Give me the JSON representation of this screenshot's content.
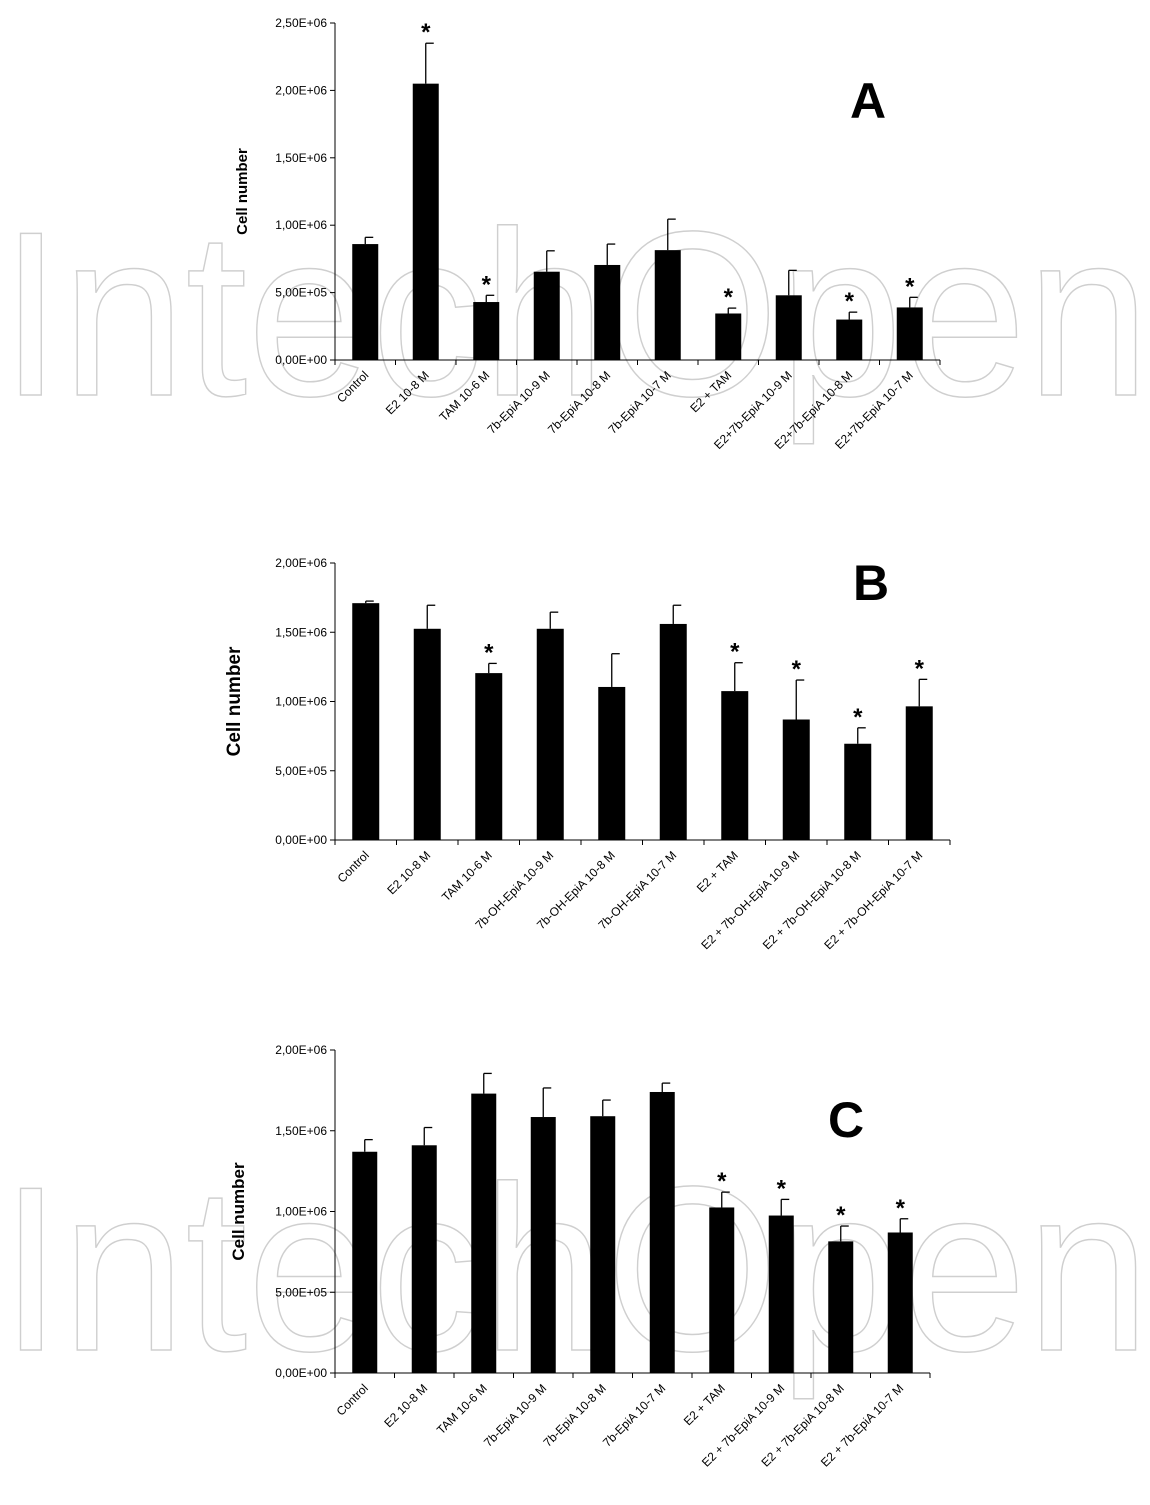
{
  "watermark_text": "IntechOpen",
  "chart_data": [
    {
      "type": "bar",
      "panel_label": "A",
      "ylabel": "Cell number",
      "ylim": [
        0,
        2500000
      ],
      "yticks": [
        "0,00E+00",
        "5,00E+05",
        "1,00E+06",
        "1,50E+06",
        "2,00E+06",
        "2,50E+06"
      ],
      "categories": [
        "Control",
        "E2 10-8 M",
        "TAM 10-6 M",
        "7b-EpiA 10-9 M",
        "7b-EpiA 10-8 M",
        "7b-EpiA 10-7 M",
        "E2 + TAM",
        "E2+7b-EpiA 10-9 M",
        "E2+7b-EpiA 10-8 M",
        "E2+7b-EpiA 10-7 M"
      ],
      "values": [
        860000,
        2050000,
        430000,
        655000,
        705000,
        815000,
        345000,
        480000,
        300000,
        390000
      ],
      "errors": [
        50000,
        300000,
        50000,
        155000,
        155000,
        230000,
        40000,
        185000,
        55000,
        75000
      ],
      "significant": [
        "",
        "*",
        "*",
        "",
        "",
        "",
        "*",
        "",
        "*",
        "*"
      ]
    },
    {
      "type": "bar",
      "panel_label": "B",
      "ylabel": "Cell number",
      "ylim": [
        0,
        2000000
      ],
      "yticks": [
        "0,00E+00",
        "5,00E+05",
        "1,00E+06",
        "1,50E+06",
        "2,00E+06"
      ],
      "categories": [
        "Control",
        "E2 10-8 M",
        "TAM 10-6 M",
        "7b-OH-EpiA 10-9 M",
        "7b-OH-EpiA 10-8 M",
        "7b-OH-EpiA 10-7 M",
        "E2 + TAM",
        "E2 + 7b-OH-EpiA 10-9 M",
        "E2 + 7b-OH-EpiA 10-8 M",
        "E2 + 7b-OH-EpiA 10-7 M"
      ],
      "values": [
        1710000,
        1525000,
        1205000,
        1525000,
        1105000,
        1560000,
        1075000,
        870000,
        695000,
        965000
      ],
      "errors": [
        15000,
        170000,
        70000,
        120000,
        240000,
        135000,
        205000,
        285000,
        115000,
        195000
      ],
      "significant": [
        "",
        "",
        "*",
        "",
        "",
        "",
        "*",
        "*",
        "*",
        "*"
      ]
    },
    {
      "type": "bar",
      "panel_label": "C",
      "ylabel": "Cell number",
      "ylim": [
        0,
        2000000
      ],
      "yticks": [
        "0,00E+00",
        "5,00E+05",
        "1,00E+06",
        "1,50E+06",
        "2,00E+06"
      ],
      "categories": [
        "Control",
        "E2 10-8 M",
        "TAM 10-6 M",
        "7b-EpiA 10-9 M",
        "7b-EpiA 10-8 M",
        "7b-EpiA 10-7 M",
        "E2 + TAM",
        "E2 + 7b-EpiA 10-9 M",
        "E2 + 7b-EpiA 10-8 M",
        "E2 + 7b-EpiA 10-7 M"
      ],
      "values": [
        1370000,
        1410000,
        1730000,
        1585000,
        1590000,
        1740000,
        1025000,
        975000,
        815000,
        870000
      ],
      "errors": [
        75000,
        110000,
        125000,
        180000,
        100000,
        55000,
        95000,
        100000,
        95000,
        85000
      ],
      "significant": [
        "",
        "",
        "",
        "",
        "",
        "",
        "*",
        "*",
        "*",
        "*"
      ]
    }
  ]
}
